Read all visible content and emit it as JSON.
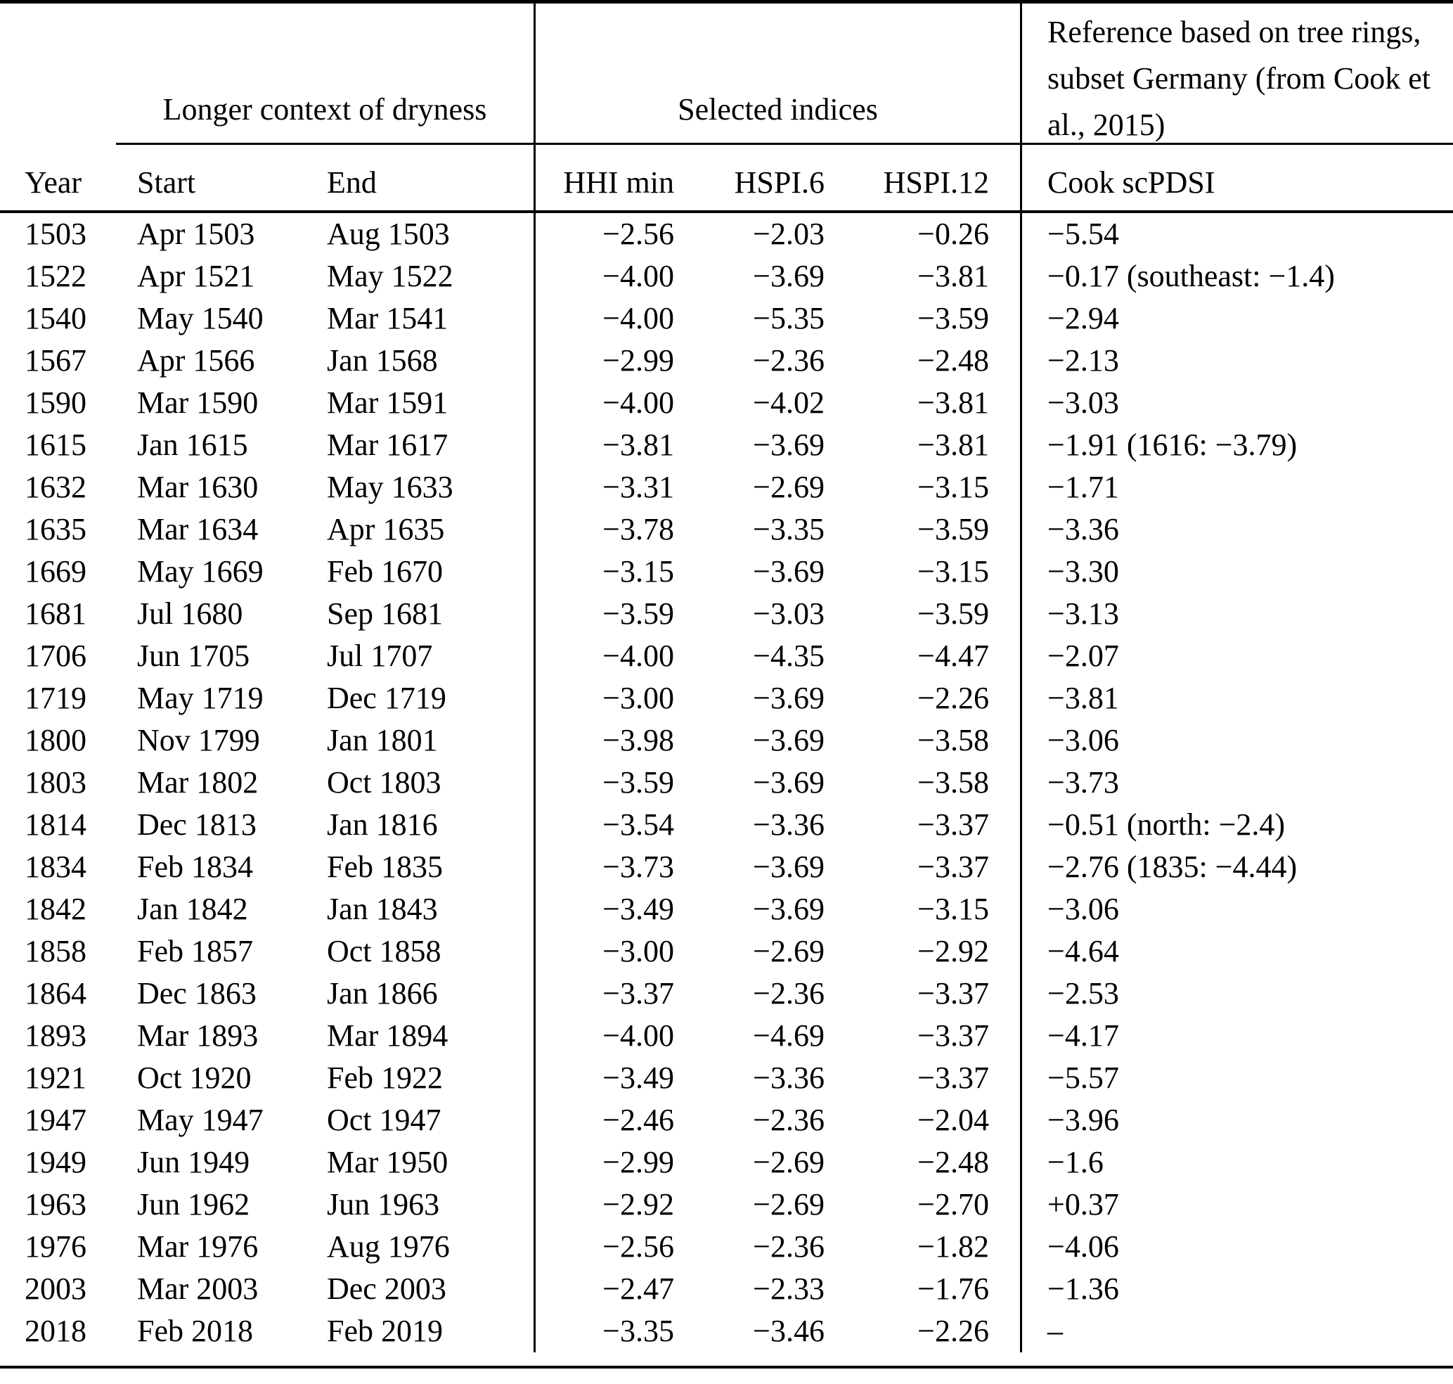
{
  "table": {
    "group_headers": {
      "context": "Longer context of dryness",
      "indices": "Selected indices",
      "reference": "Reference based on tree rings, subset Germany (from Cook et al., 2015)"
    },
    "columns": {
      "year": "Year",
      "start": "Start",
      "end": "End",
      "hhi_min": "HHI min",
      "hspi6": "HSPI.6",
      "hspi12": "HSPI.12",
      "cook": "Cook scPDSI"
    },
    "rows": [
      [
        "1503",
        "Apr 1503",
        "Aug 1503",
        "−2.56",
        "−2.03",
        "−0.26",
        "−5.54"
      ],
      [
        "1522",
        "Apr 1521",
        "May 1522",
        "−4.00",
        "−3.69",
        "−3.81",
        "−0.17 (southeast: −1.4)"
      ],
      [
        "1540",
        "May 1540",
        "Mar 1541",
        "−4.00",
        "−5.35",
        "−3.59",
        "−2.94"
      ],
      [
        "1567",
        "Apr 1566",
        "Jan 1568",
        "−2.99",
        "−2.36",
        "−2.48",
        "−2.13"
      ],
      [
        "1590",
        "Mar 1590",
        "Mar 1591",
        "−4.00",
        "−4.02",
        "−3.81",
        "−3.03"
      ],
      [
        "1615",
        "Jan 1615",
        "Mar 1617",
        "−3.81",
        "−3.69",
        "−3.81",
        "−1.91 (1616: −3.79)"
      ],
      [
        "1632",
        "Mar 1630",
        "May 1633",
        "−3.31",
        "−2.69",
        "−3.15",
        "−1.71"
      ],
      [
        "1635",
        "Mar 1634",
        "Apr 1635",
        "−3.78",
        "−3.35",
        "−3.59",
        "−3.36"
      ],
      [
        "1669",
        "May 1669",
        "Feb 1670",
        "−3.15",
        "−3.69",
        "−3.15",
        "−3.30"
      ],
      [
        "1681",
        "Jul 1680",
        "Sep 1681",
        "−3.59",
        "−3.03",
        "−3.59",
        "−3.13"
      ],
      [
        "1706",
        "Jun 1705",
        "Jul 1707",
        "−4.00",
        "−4.35",
        "−4.47",
        "−2.07"
      ],
      [
        "1719",
        "May 1719",
        "Dec 1719",
        "−3.00",
        "−3.69",
        "−2.26",
        "−3.81"
      ],
      [
        "1800",
        "Nov 1799",
        "Jan 1801",
        "−3.98",
        "−3.69",
        "−3.58",
        "−3.06"
      ],
      [
        "1803",
        "Mar 1802",
        "Oct 1803",
        "−3.59",
        "−3.69",
        "−3.58",
        "−3.73"
      ],
      [
        "1814",
        "Dec 1813",
        "Jan 1816",
        "−3.54",
        "−3.36",
        "−3.37",
        "−0.51 (north: −2.4)"
      ],
      [
        "1834",
        "Feb 1834",
        "Feb 1835",
        "−3.73",
        "−3.69",
        "−3.37",
        "−2.76 (1835: −4.44)"
      ],
      [
        "1842",
        "Jan 1842",
        "Jan 1843",
        "−3.49",
        "−3.69",
        "−3.15",
        "−3.06"
      ],
      [
        "1858",
        "Feb 1857",
        "Oct 1858",
        "−3.00",
        "−2.69",
        "−2.92",
        "−4.64"
      ],
      [
        "1864",
        "Dec 1863",
        "Jan 1866",
        "−3.37",
        "−2.36",
        "−3.37",
        "−2.53"
      ],
      [
        "1893",
        "Mar 1893",
        "Mar 1894",
        "−4.00",
        "−4.69",
        "−3.37",
        "−4.17"
      ],
      [
        "1921",
        "Oct 1920",
        "Feb 1922",
        "−3.49",
        "−3.36",
        "−3.37",
        "−5.57"
      ],
      [
        "1947",
        "May 1947",
        "Oct 1947",
        "−2.46",
        "−2.36",
        "−2.04",
        "−3.96"
      ],
      [
        "1949",
        "Jun 1949",
        "Mar 1950",
        "−2.99",
        "−2.69",
        "−2.48",
        "−1.6"
      ],
      [
        "1963",
        "Jun 1962",
        "Jun 1963",
        "−2.92",
        "−2.69",
        "−2.70",
        "+0.37"
      ],
      [
        "1976",
        "Mar 1976",
        "Aug 1976",
        "−2.56",
        "−2.36",
        "−1.82",
        "−4.06"
      ],
      [
        "2003",
        "Mar 2003",
        "Dec 2003",
        "−2.47",
        "−2.33",
        "−1.76",
        "−1.36"
      ],
      [
        "2018",
        "Feb 2018",
        "Feb 2019",
        "−3.35",
        "−3.46",
        "−2.26",
        "–"
      ]
    ]
  }
}
